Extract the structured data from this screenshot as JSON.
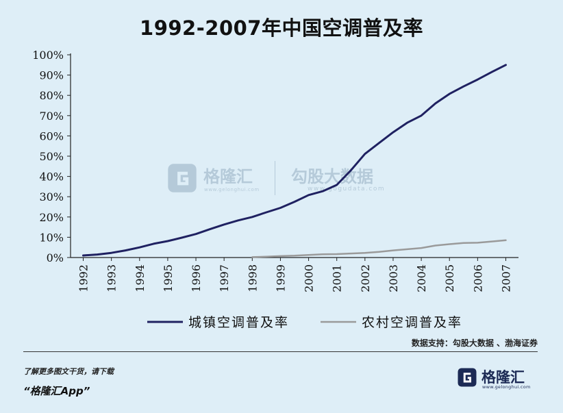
{
  "chart_data": {
    "type": "line",
    "title": "1992-2007年中国空调普及率",
    "categories": [
      "1992",
      "1993",
      "1994",
      "1995",
      "1996",
      "1997",
      "1998",
      "1999",
      "2000",
      "2001",
      "2002",
      "2003",
      "2004",
      "2005",
      "2006",
      "2007"
    ],
    "ylim": [
      0,
      100
    ],
    "yticks": [
      "0%",
      "10%",
      "20%",
      "30%",
      "40%",
      "50%",
      "60%",
      "70%",
      "80%",
      "90%",
      "100%"
    ],
    "xlabel": "",
    "ylabel": "",
    "grid": false,
    "legend_position": "bottom",
    "series": [
      {
        "name": "城镇空调普及率",
        "color": "#1f2161",
        "x": [
          1992.0,
          1992.5,
          1993.0,
          1993.5,
          1994.0,
          1994.5,
          1995.0,
          1995.5,
          1996.0,
          1996.5,
          1997.0,
          1997.5,
          1998.0,
          1998.5,
          1999.0,
          1999.5,
          2000.0,
          2000.5,
          2001.0,
          2001.5,
          2002.0,
          2002.5,
          2003.0,
          2003.5,
          2004.0,
          2004.5,
          2005.0,
          2005.5,
          2006.0,
          2006.5,
          2007.0
        ],
        "values": [
          1.0,
          1.5,
          2.3,
          3.5,
          5.0,
          6.8,
          8.1,
          9.8,
          11.6,
          14.0,
          16.3,
          18.3,
          20.0,
          22.3,
          24.5,
          27.5,
          30.8,
          32.7,
          35.8,
          43.0,
          51.1,
          56.5,
          61.8,
          66.5,
          70.0,
          76.0,
          80.7,
          84.4,
          87.8,
          91.5,
          95.0
        ]
      },
      {
        "name": "农村空调普及率",
        "color": "#9a9a9a",
        "x": [
          1998.0,
          1998.5,
          1999.0,
          1999.5,
          2000.0,
          2000.5,
          2001.0,
          2001.5,
          2002.0,
          2002.5,
          2003.0,
          2003.5,
          2004.0,
          2004.5,
          2005.0,
          2005.5,
          2006.0,
          2006.5,
          2007.0
        ],
        "values": [
          0.2,
          0.4,
          0.7,
          0.9,
          1.3,
          1.6,
          1.7,
          2.0,
          2.3,
          2.8,
          3.5,
          4.1,
          4.7,
          5.9,
          6.6,
          7.2,
          7.3,
          7.9,
          8.5
        ]
      }
    ]
  },
  "source_note": "数据支持：勾股大数据 、渤海证券",
  "promo": {
    "line1": "了解更多图文干货，请下载",
    "line2": "“格隆汇App”"
  },
  "brand": {
    "name": "格隆汇",
    "url": "www.gelonghui.com"
  },
  "watermark": {
    "name1": "格隆汇",
    "url1": "www.gelonghui.com",
    "name2": "勾股大数据",
    "url2": "www.gogudata.com"
  },
  "icons": {
    "brand": "gelonghui-logo-icon",
    "watermark": "gelonghui-watermark-icon"
  }
}
